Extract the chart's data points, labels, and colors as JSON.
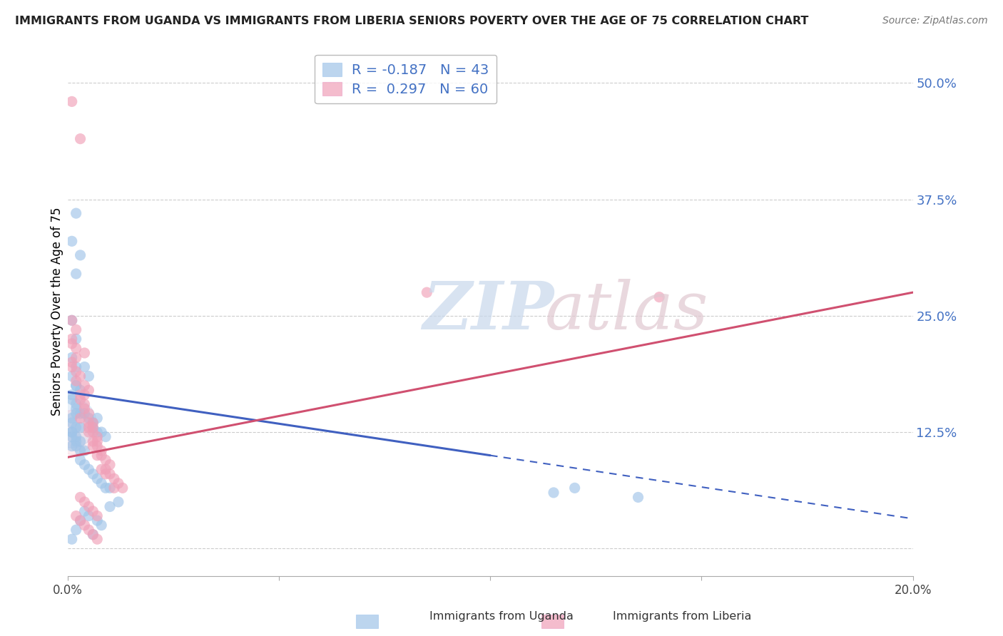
{
  "title": "IMMIGRANTS FROM UGANDA VS IMMIGRANTS FROM LIBERIA SENIORS POVERTY OVER THE AGE OF 75 CORRELATION CHART",
  "source": "Source: ZipAtlas.com",
  "ylabel": "Seniors Poverty Over the Age of 75",
  "x_min": 0.0,
  "x_max": 0.2,
  "y_min": -0.03,
  "y_max": 0.54,
  "y_ticks": [
    0.0,
    0.125,
    0.25,
    0.375,
    0.5
  ],
  "y_tick_labels": [
    "",
    "12.5%",
    "25.0%",
    "37.5%",
    "50.0%"
  ],
  "x_ticks": [
    0.0,
    0.05,
    0.1,
    0.15,
    0.2
  ],
  "x_tick_labels": [
    "0.0%",
    "",
    "",
    "",
    "20.0%"
  ],
  "uganda_color": "#a0c4e8",
  "liberia_color": "#f0a0b8",
  "trend_uganda_color": "#4060c0",
  "trend_liberia_color": "#d05070",
  "background_color": "#ffffff",
  "uganda_trend_x0": 0.0,
  "uganda_trend_y0": 0.168,
  "uganda_trend_x1": 0.1,
  "uganda_trend_y1": 0.1,
  "uganda_trend_dash_x1": 0.2,
  "uganda_trend_dash_y1": 0.032,
  "liberia_trend_x0": 0.0,
  "liberia_trend_y0": 0.098,
  "liberia_trend_x1": 0.2,
  "liberia_trend_y1": 0.275,
  "uganda_points": [
    [
      0.002,
      0.36
    ],
    [
      0.003,
      0.315
    ],
    [
      0.001,
      0.33
    ],
    [
      0.002,
      0.295
    ],
    [
      0.001,
      0.245
    ],
    [
      0.002,
      0.225
    ],
    [
      0.001,
      0.205
    ],
    [
      0.002,
      0.195
    ],
    [
      0.001,
      0.185
    ],
    [
      0.002,
      0.175
    ],
    [
      0.002,
      0.175
    ],
    [
      0.003,
      0.17
    ],
    [
      0.001,
      0.165
    ],
    [
      0.001,
      0.16
    ],
    [
      0.002,
      0.155
    ],
    [
      0.002,
      0.15
    ],
    [
      0.003,
      0.145
    ],
    [
      0.002,
      0.145
    ],
    [
      0.001,
      0.14
    ],
    [
      0.001,
      0.135
    ],
    [
      0.002,
      0.13
    ],
    [
      0.003,
      0.13
    ],
    [
      0.001,
      0.125
    ],
    [
      0.001,
      0.125
    ],
    [
      0.002,
      0.12
    ],
    [
      0.001,
      0.12
    ],
    [
      0.002,
      0.115
    ],
    [
      0.003,
      0.115
    ],
    [
      0.001,
      0.11
    ],
    [
      0.002,
      0.11
    ],
    [
      0.003,
      0.105
    ],
    [
      0.004,
      0.105
    ],
    [
      0.004,
      0.195
    ],
    [
      0.005,
      0.185
    ],
    [
      0.004,
      0.145
    ],
    [
      0.005,
      0.14
    ],
    [
      0.006,
      0.135
    ],
    [
      0.006,
      0.13
    ],
    [
      0.007,
      0.125
    ],
    [
      0.007,
      0.14
    ],
    [
      0.008,
      0.125
    ],
    [
      0.009,
      0.12
    ],
    [
      0.003,
      0.095
    ],
    [
      0.004,
      0.09
    ],
    [
      0.005,
      0.085
    ],
    [
      0.006,
      0.08
    ],
    [
      0.007,
      0.075
    ],
    [
      0.008,
      0.07
    ],
    [
      0.009,
      0.065
    ],
    [
      0.01,
      0.065
    ],
    [
      0.01,
      0.045
    ],
    [
      0.012,
      0.05
    ],
    [
      0.004,
      0.04
    ],
    [
      0.005,
      0.035
    ],
    [
      0.003,
      0.03
    ],
    [
      0.007,
      0.03
    ],
    [
      0.008,
      0.025
    ],
    [
      0.002,
      0.02
    ],
    [
      0.006,
      0.015
    ],
    [
      0.001,
      0.01
    ],
    [
      0.12,
      0.065
    ],
    [
      0.135,
      0.055
    ],
    [
      0.115,
      0.06
    ]
  ],
  "liberia_points": [
    [
      0.001,
      0.48
    ],
    [
      0.003,
      0.44
    ],
    [
      0.001,
      0.245
    ],
    [
      0.002,
      0.235
    ],
    [
      0.001,
      0.225
    ],
    [
      0.001,
      0.22
    ],
    [
      0.002,
      0.215
    ],
    [
      0.004,
      0.21
    ],
    [
      0.002,
      0.205
    ],
    [
      0.001,
      0.2
    ],
    [
      0.001,
      0.195
    ],
    [
      0.002,
      0.19
    ],
    [
      0.003,
      0.185
    ],
    [
      0.002,
      0.18
    ],
    [
      0.004,
      0.175
    ],
    [
      0.005,
      0.17
    ],
    [
      0.003,
      0.165
    ],
    [
      0.004,
      0.165
    ],
    [
      0.003,
      0.16
    ],
    [
      0.004,
      0.155
    ],
    [
      0.004,
      0.15
    ],
    [
      0.005,
      0.145
    ],
    [
      0.003,
      0.14
    ],
    [
      0.005,
      0.135
    ],
    [
      0.006,
      0.135
    ],
    [
      0.005,
      0.13
    ],
    [
      0.006,
      0.13
    ],
    [
      0.005,
      0.125
    ],
    [
      0.006,
      0.125
    ],
    [
      0.007,
      0.12
    ],
    [
      0.006,
      0.115
    ],
    [
      0.007,
      0.115
    ],
    [
      0.007,
      0.11
    ],
    [
      0.006,
      0.11
    ],
    [
      0.008,
      0.105
    ],
    [
      0.007,
      0.1
    ],
    [
      0.008,
      0.1
    ],
    [
      0.009,
      0.095
    ],
    [
      0.01,
      0.09
    ],
    [
      0.009,
      0.085
    ],
    [
      0.008,
      0.085
    ],
    [
      0.009,
      0.08
    ],
    [
      0.01,
      0.08
    ],
    [
      0.011,
      0.075
    ],
    [
      0.012,
      0.07
    ],
    [
      0.013,
      0.065
    ],
    [
      0.011,
      0.065
    ],
    [
      0.003,
      0.055
    ],
    [
      0.004,
      0.05
    ],
    [
      0.005,
      0.045
    ],
    [
      0.006,
      0.04
    ],
    [
      0.007,
      0.035
    ],
    [
      0.002,
      0.035
    ],
    [
      0.003,
      0.03
    ],
    [
      0.004,
      0.025
    ],
    [
      0.005,
      0.02
    ],
    [
      0.006,
      0.015
    ],
    [
      0.007,
      0.01
    ],
    [
      0.085,
      0.275
    ],
    [
      0.14,
      0.27
    ]
  ],
  "watermark_zip_color": "#c8d8ec",
  "watermark_atlas_color": "#e0c8d0"
}
